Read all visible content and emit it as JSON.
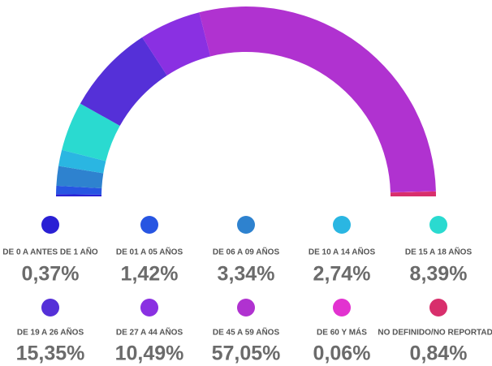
{
  "chart_data": {
    "type": "donut",
    "categories": [
      "DE 0 A ANTES DE 1 AÑO",
      "DE 01 A 05 AÑOS",
      "DE 06 A 09 AÑOS",
      "DE 10 A 14 AÑOS",
      "DE 15 A 18 AÑOS",
      "DE 19 A 26 AÑOS",
      "DE 27 A 44 AÑOS",
      "DE 45 A 59 AÑOS",
      "DE 60 Y MÁS",
      "NO DEFINIDO/NO REPORTADO"
    ],
    "values": [
      0.37,
      1.42,
      3.34,
      2.74,
      8.39,
      15.35,
      10.49,
      57.05,
      0.06,
      0.84
    ],
    "value_labels": [
      "0,37%",
      "1,42%",
      "3,34%",
      "2,74%",
      "8,39%",
      "15,35%",
      "10,49%",
      "57,05%",
      "0,06%",
      "0,84%"
    ],
    "colors": [
      "#2a20d4",
      "#2755e2",
      "#2e82cf",
      "#2ab6e2",
      "#2adad0",
      "#5530d8",
      "#8a30e2",
      "#b032d0",
      "#e232d0",
      "#d82f6c"
    ]
  }
}
